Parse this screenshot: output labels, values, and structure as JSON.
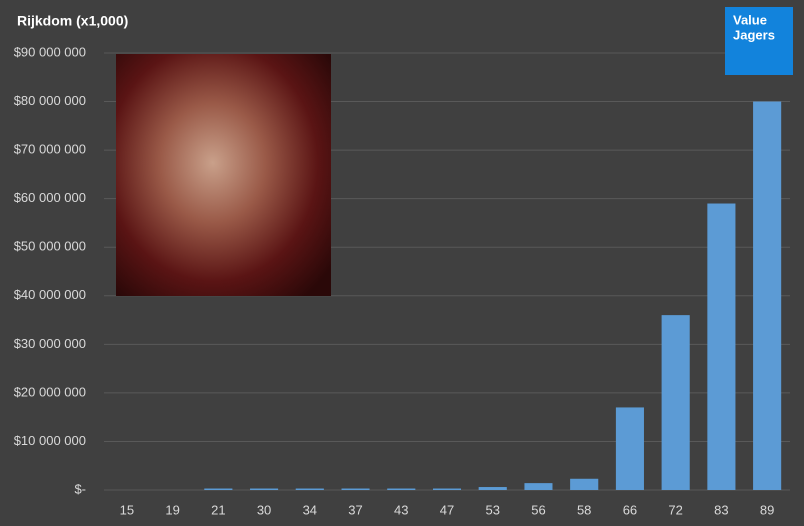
{
  "chart_data": {
    "type": "bar",
    "title": "Rijkdom (x1,000)",
    "logo": [
      "Value",
      "Jagers"
    ],
    "categories": [
      "15",
      "19",
      "21",
      "30",
      "34",
      "37",
      "43",
      "47",
      "53",
      "56",
      "58",
      "66",
      "72",
      "83",
      "89"
    ],
    "values": [
      0,
      0,
      300000,
      300000,
      300000,
      300000,
      300000,
      300000,
      600000,
      1400000,
      2300000,
      17000000,
      36000000,
      59000000,
      80000000
    ],
    "color": "#5b9bd5",
    "ylim": [
      0,
      90000000
    ],
    "yticks": [
      {
        "value": 0,
        "label": "$-"
      },
      {
        "value": 10000000,
        "label": "$10 000 000"
      },
      {
        "value": 20000000,
        "label": "$20 000 000"
      },
      {
        "value": 30000000,
        "label": "$30 000 000"
      },
      {
        "value": 40000000,
        "label": "$40 000 000"
      },
      {
        "value": 50000000,
        "label": "$50 000 000"
      },
      {
        "value": 60000000,
        "label": "$60 000 000"
      },
      {
        "value": 70000000,
        "label": "$70 000 000"
      },
      {
        "value": 80000000,
        "label": "$80 000 000"
      },
      {
        "value": 90000000,
        "label": "$90 000 000"
      }
    ],
    "grid": true
  }
}
